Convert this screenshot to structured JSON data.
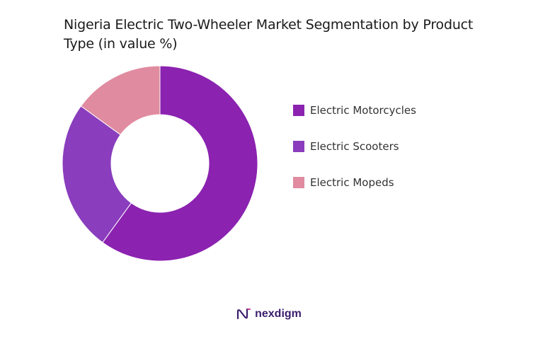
{
  "title": "Nigeria Electric Two-Wheeler Market Segmentation by Product Type (in value %)",
  "chart_data": {
    "type": "pie",
    "variant": "donut",
    "title": "Nigeria Electric Two-Wheeler Market Segmentation by Product Type (in value %)",
    "categories": [
      "Electric Motorcycles",
      "Electric Scooters",
      "Electric Mopeds"
    ],
    "values": [
      60,
      25,
      15
    ],
    "colors": [
      "#8b22b0",
      "#8a3dbd",
      "#e08ba0"
    ],
    "legend_position": "right"
  },
  "legend": {
    "items": [
      {
        "label": "Electric Motorcycles",
        "color": "#8b22b0"
      },
      {
        "label": "Electric Scooters",
        "color": "#8a3dbd"
      },
      {
        "label": "Electric Mopeds",
        "color": "#e08ba0"
      }
    ]
  },
  "footer": {
    "brand": "nexdigm",
    "logo_icon": "nexdigm-logo-icon"
  }
}
